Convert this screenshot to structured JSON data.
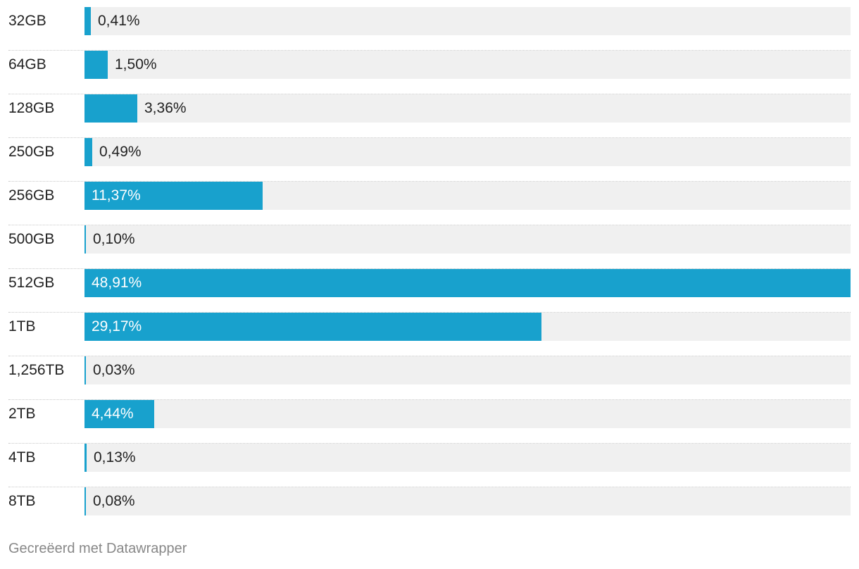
{
  "chart_data": {
    "type": "bar",
    "orientation": "horizontal",
    "categories": [
      "32GB",
      "64GB",
      "128GB",
      "250GB",
      "256GB",
      "500GB",
      "512GB",
      "1TB",
      "1,256TB",
      "2TB",
      "4TB",
      "8TB"
    ],
    "values": [
      0.41,
      1.5,
      3.36,
      0.49,
      11.37,
      0.1,
      48.91,
      29.17,
      0.03,
      4.44,
      0.13,
      0.08
    ],
    "value_labels": [
      "0,41%",
      "1,50%",
      "3,36%",
      "0,49%",
      "11,37%",
      "0,10%",
      "48,91%",
      "29,17%",
      "0,03%",
      "4,44%",
      "0,13%",
      "0,08%"
    ],
    "xlim": [
      0,
      48.91
    ],
    "bar_color": "#18a1cd",
    "track_color": "#f0f0f0",
    "grid": false
  },
  "footer": {
    "credit": "Gecreëerd met Datawrapper"
  }
}
